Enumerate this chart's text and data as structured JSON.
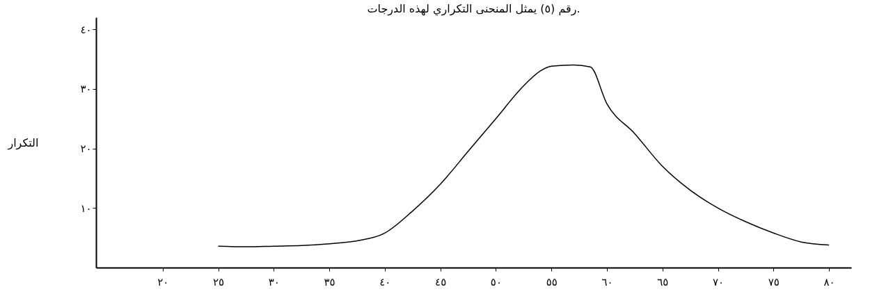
{
  "chart_data": {
    "type": "line",
    "title": "رقم (٥) يمثل المنحنى التكراري لهذه الدرجات.",
    "ylabel": "التكرار",
    "x": [
      25,
      27.5,
      30,
      32.5,
      35,
      37.5,
      40,
      42.5,
      45,
      47.5,
      50,
      52.5,
      54,
      55,
      57,
      58.5,
      60,
      62.5,
      65,
      67.5,
      70,
      72.5,
      75,
      77.5,
      80
    ],
    "series": [
      {
        "color": "#000000",
        "values": [
          3.6,
          3.5,
          3.6,
          3.7,
          4,
          4.5,
          5.8,
          9.5,
          14,
          19.5,
          25,
          30.5,
          33,
          33.8,
          34,
          33.7,
          27.5,
          22.5,
          17,
          13,
          10,
          7.7,
          5.8,
          4.3,
          3.8
        ]
      }
    ],
    "xlim": [
      14,
      82
    ],
    "ylim": [
      0,
      42
    ],
    "xticks": [
      {
        "value": 20,
        "label": "٢٠"
      },
      {
        "value": 25,
        "label": "٢٥"
      },
      {
        "value": 30,
        "label": "٣٠"
      },
      {
        "value": 35,
        "label": "٣٥"
      },
      {
        "value": 40,
        "label": "٤٠"
      },
      {
        "value": 45,
        "label": "٤٥"
      },
      {
        "value": 50,
        "label": "٥٠"
      },
      {
        "value": 55,
        "label": "٥٥"
      },
      {
        "value": 60,
        "label": "٦٠"
      },
      {
        "value": 65,
        "label": "٦٥"
      },
      {
        "value": 70,
        "label": "٧٠"
      },
      {
        "value": 75,
        "label": "٧٥"
      },
      {
        "value": 80,
        "label": "٨٠"
      }
    ],
    "yticks": [
      {
        "value": 10,
        "label": "١٠"
      },
      {
        "value": 20,
        "label": "٢٠"
      },
      {
        "value": 30,
        "label": "٣٠"
      },
      {
        "value": 40,
        "label": "٤٠"
      }
    ],
    "grid": false,
    "marker": "none",
    "line_style": "solid"
  }
}
